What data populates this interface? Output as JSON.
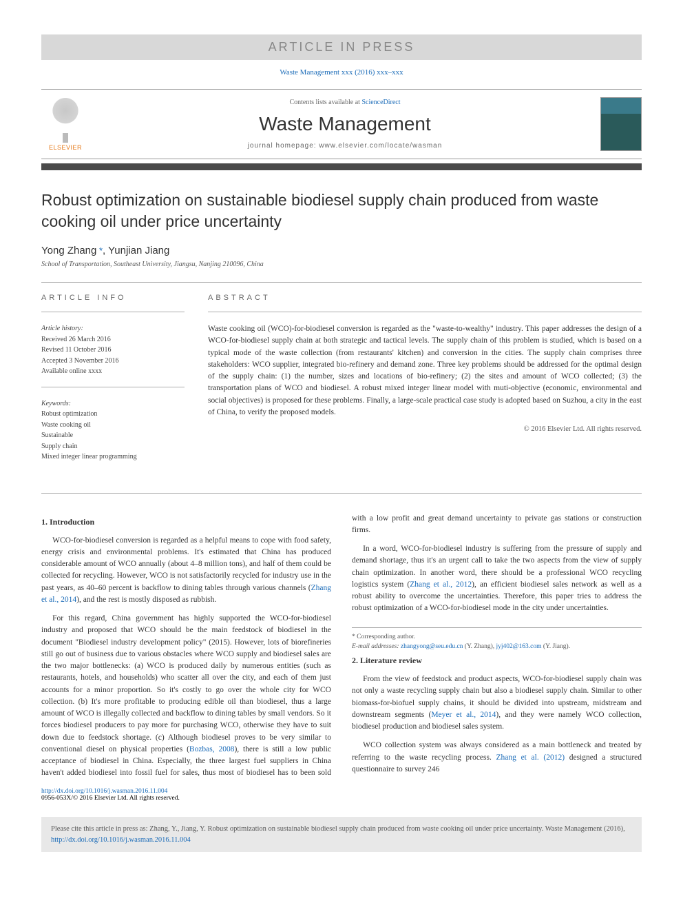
{
  "banner": "ARTICLE IN PRESS",
  "reference_line": "Waste Management xxx (2016) xxx–xxx",
  "header": {
    "publisher": "ELSEVIER",
    "contents_prefix": "Contents lists available at ",
    "contents_link": "ScienceDirect",
    "journal": "Waste Management",
    "homepage_label": "journal homepage: ",
    "homepage_url": "www.elsevier.com/locate/wasman"
  },
  "title": "Robust optimization on sustainable biodiesel supply chain produced from waste cooking oil under price uncertainty",
  "authors": [
    {
      "name": "Yong Zhang",
      "corr": true
    },
    {
      "name": "Yunjian Jiang",
      "corr": false
    }
  ],
  "affiliation": "School of Transportation, Southeast University, Jiangsu, Nanjing 210096, China",
  "info": {
    "label": "ARTICLE INFO",
    "history_label": "Article history:",
    "history": [
      "Received 26 March 2016",
      "Revised 11 October 2016",
      "Accepted 3 November 2016",
      "Available online xxxx"
    ],
    "keywords_label": "Keywords:",
    "keywords": [
      "Robust optimization",
      "Waste cooking oil",
      "Sustainable",
      "Supply chain",
      "Mixed integer linear programming"
    ]
  },
  "abstract": {
    "label": "ABSTRACT",
    "text": "Waste cooking oil (WCO)-for-biodiesel conversion is regarded as the \"waste-to-wealthy\" industry. This paper addresses the design of a WCO-for-biodiesel supply chain at both strategic and tactical levels. The supply chain of this problem is studied, which is based on a typical mode of the waste collection (from restaurants' kitchen) and conversion in the cities. The supply chain comprises three stakeholders: WCO supplier, integrated bio-refinery and demand zone. Three key problems should be addressed for the optimal design of the supply chain: (1) the number, sizes and locations of bio-refinery; (2) the sites and amount of WCO collected; (3) the transportation plans of WCO and biodiesel. A robust mixed integer linear model with muti-objective (economic, environmental and social objectives) is proposed for these problems. Finally, a large-scale practical case study is adopted based on Suzhou, a city in the east of China, to verify the proposed models.",
    "copyright": "© 2016 Elsevier Ltd. All rights reserved."
  },
  "sections": [
    {
      "heading": "1. Introduction",
      "paragraphs": [
        "WCO-for-biodiesel conversion is regarded as a helpful means to cope with food safety, energy crisis and environmental problems. It's estimated that China has produced considerable amount of WCO annually (about 4–8 million tons), and half of them could be collected for recycling. However, WCO is not satisfactorily recycled for industry use in the past years, as 40–60 percent is backflow to dining tables through various channels (<span class=\"cite\">Zhang et al., 2014</span>), and the rest is mostly disposed as rubbish.",
        "For this regard, China government has highly supported the WCO-for-biodiesel industry and proposed that WCO should be the main feedstock of biodiesel in the document \"Biodiesel industry development policy\" (2015). However, lots of biorefineries still go out of business due to various obstacles where WCO supply and biodiesel sales are the two major bottlenecks: (a) WCO is produced daily by numerous entities (such as restaurants, hotels, and households) who scatter all over the city, and each of them just accounts for a minor proportion. So it's costly to go over the whole city for WCO collection. (b) It's more profitable to producing edible oil than biodiesel, thus a large amount of WCO is illegally collected and backflow to dining tables by small vendors. So it forces biodiesel producers to pay more for purchasing WCO, otherwise they have to suit down due to feedstock shortage. (c) Although biodiesel proves to be very similar to conventional diesel on physical properties (<span class=\"cite\">Bozbas, 2008</span>), there is still a low public acceptance of biodiesel in China. Especially, the three largest fuel suppliers in China haven't added biodiesel into fossil fuel for sales, thus most of biodiesel has to been sold with a low profit and great demand uncertainty to private gas stations or construction firms.",
        "In a word, WCO-for-biodiesel industry is suffering from the pressure of supply and demand shortage, thus it's an urgent call to take the two aspects from the view of supply chain optimization. In another word, there should be a professional WCO recycling logistics system (<span class=\"cite\">Zhang et al., 2012</span>), an efficient biodiesel sales network as well as a robust ability to overcome the uncertainties. Therefore, this paper tries to address the robust optimization of a WCO-for-biodiesel mode in the city under uncertainties."
      ]
    },
    {
      "heading": "2. Literature review",
      "paragraphs": [
        "From the view of feedstock and product aspects, WCO-for-biodiesel supply chain was not only a waste recycling supply chain but also a biodiesel supply chain. Similar to other biomass-for-biofuel supply chains, it should be divided into upstream, midstream and downstream segments (<span class=\"cite\">Meyer et al., 2014</span>), and they were namely WCO collection, biodiesel production and biodiesel sales system.",
        "WCO collection system was always considered as a main bottleneck and treated by referring to the waste recycling process. <span class=\"cite\">Zhang et al. (2012)</span> designed a structured questionnaire to survey 246"
      ]
    }
  ],
  "footnotes": {
    "corr_label": "* Corresponding author.",
    "email_label": "E-mail addresses: ",
    "emails": [
      {
        "addr": "zhangyong@seu.edu.cn",
        "who": "(Y. Zhang)"
      },
      {
        "addr": "jyj402@163.com",
        "who": "(Y. Jiang)"
      }
    ]
  },
  "doi": {
    "url": "http://dx.doi.org/10.1016/j.wasman.2016.11.004",
    "issn": "0956-053X/© 2016 Elsevier Ltd. All rights reserved."
  },
  "citebox": {
    "prefix": "Please cite this article in press as: Zhang, Y., Jiang, Y. Robust optimization on sustainable biodiesel supply chain produced from waste cooking oil under price uncertainty. Waste Management (2016), ",
    "url": "http://dx.doi.org/10.1016/j.wasman.2016.11.004"
  },
  "colors": {
    "link": "#1a6bb8",
    "banner_bg": "#d8d8d8",
    "banner_fg": "#888888",
    "bar": "#4a4a4a",
    "citebox_bg": "#e8e8e8",
    "elsevier_orange": "#e67817"
  }
}
